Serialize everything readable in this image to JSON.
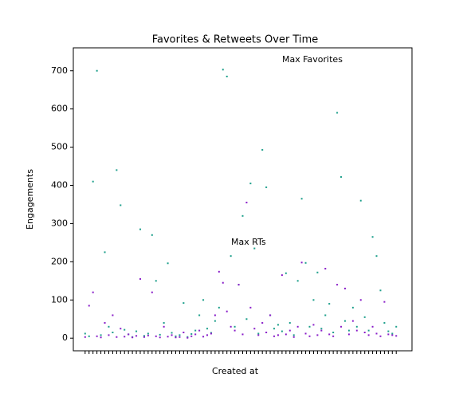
{
  "chart_data": {
    "type": "scatter",
    "title": "Favorites & Retweets Over Time",
    "xlabel": "Created at",
    "ylabel": "Engagements",
    "annotations": [
      "Max Favorites",
      "Max RTs"
    ],
    "x": [
      0,
      1,
      2,
      3,
      4,
      5,
      6,
      7,
      8,
      9,
      10,
      11,
      12,
      13,
      14,
      15,
      16,
      17,
      18,
      19,
      20,
      21,
      22,
      23,
      24,
      25,
      26,
      27,
      28,
      29,
      30,
      31,
      32,
      33,
      34,
      35,
      36,
      37,
      38,
      39,
      40,
      41,
      42,
      43,
      44,
      45,
      46,
      47,
      48,
      49,
      50,
      51,
      52,
      53,
      54,
      55,
      56,
      57,
      58,
      59,
      60,
      61,
      62,
      63,
      64,
      65,
      66,
      67,
      68,
      69,
      70,
      71,
      72,
      73,
      74,
      75,
      76,
      77,
      78,
      79
    ],
    "xlim": [
      -3,
      83
    ],
    "ylim": [
      -33,
      760
    ],
    "yticks": [
      0,
      100,
      200,
      300,
      400,
      500,
      600,
      700
    ],
    "series": [
      {
        "name": "Favorites",
        "color": "#1fa08c",
        "values": [
          12,
          5,
          410,
          700,
          8,
          225,
          30,
          15,
          440,
          348,
          22,
          10,
          3,
          18,
          285,
          6,
          12,
          270,
          150,
          9,
          40,
          196,
          14,
          5,
          8,
          92,
          3,
          11,
          20,
          60,
          100,
          25,
          14,
          45,
          80,
          703,
          685,
          215,
          30,
          140,
          320,
          50,
          405,
          235,
          12,
          493,
          395,
          60,
          25,
          35,
          18,
          170,
          40,
          8,
          150,
          365,
          197,
          30,
          100,
          172,
          25,
          60,
          90,
          15,
          590,
          422,
          45,
          20,
          80,
          30,
          360,
          55,
          20,
          265,
          215,
          125,
          40,
          18,
          12,
          30
        ]
      },
      {
        "name": "Retweets",
        "color": "#8a1fc9",
        "values": [
          3,
          85,
          120,
          5,
          2,
          40,
          8,
          60,
          3,
          25,
          4,
          10,
          2,
          6,
          155,
          3,
          7,
          120,
          5,
          2,
          30,
          4,
          8,
          2,
          3,
          15,
          1,
          5,
          10,
          20,
          4,
          8,
          12,
          60,
          174,
          145,
          70,
          30,
          20,
          140,
          10,
          355,
          80,
          25,
          8,
          40,
          15,
          60,
          5,
          8,
          165,
          10,
          20,
          3,
          30,
          198,
          12,
          5,
          35,
          8,
          20,
          182,
          10,
          5,
          140,
          30,
          130,
          10,
          45,
          20,
          100,
          15,
          8,
          30,
          12,
          5,
          95,
          10,
          8,
          6
        ]
      }
    ]
  }
}
